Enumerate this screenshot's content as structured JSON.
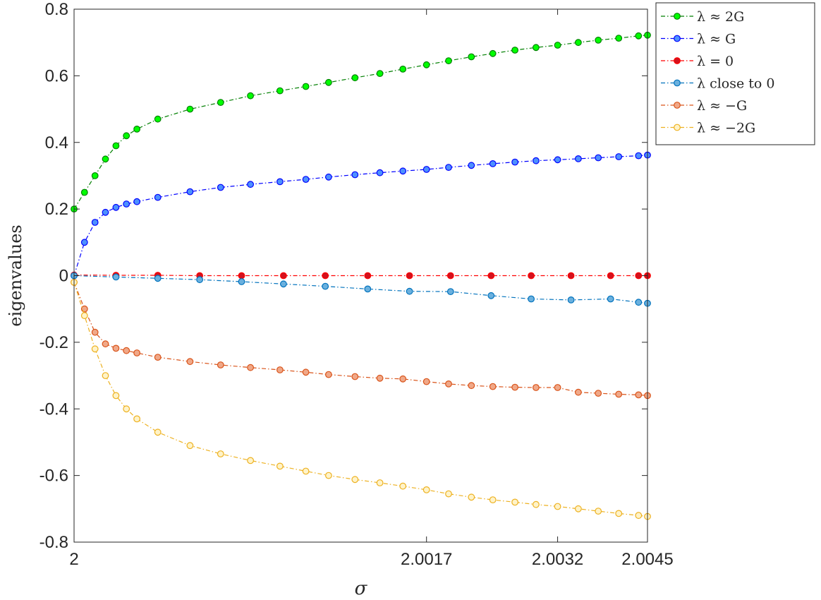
{
  "chart_data": {
    "type": "line",
    "title": "",
    "xlabel": "σ",
    "ylabel": "eigenvalues",
    "xlim": [
      2,
      2.0045
    ],
    "ylim": [
      -0.8,
      0.8
    ],
    "x_scale": "sqrt",
    "x_ticks": [
      2,
      2.0017,
      2.0032,
      2.0045
    ],
    "x_tick_labels": [
      "2",
      "2.0017",
      "2.0032",
      "2.0045"
    ],
    "y_ticks": [
      -0.8,
      -0.6,
      -0.4,
      -0.2,
      0,
      0.2,
      0.4,
      0.6,
      0.8
    ],
    "y_tick_labels": [
      "-0.8",
      "-0.6",
      "-0.4",
      "-0.2",
      "0",
      "0.2",
      "0.4",
      "0.6",
      "0.8"
    ],
    "grid": false,
    "legend_position": "outside-top-right",
    "series": [
      {
        "name": "λ ≈ 2G",
        "color": "#007f00",
        "marker_fill": "#00ff00",
        "line_style": "dash-dot",
        "x": [
          2.0,
          2.0000015,
          2.000006,
          2.0000135,
          2.000024,
          2.0000375,
          2.000054,
          2.000096,
          2.000184,
          2.000294,
          2.000426,
          2.00058,
          2.000735,
          2.000887,
          2.00108,
          2.00128,
          2.00148,
          2.0017,
          2.00192,
          2.00216,
          2.0024,
          2.00266,
          2.00292,
          2.0032,
          2.00348,
          2.00376,
          2.00406,
          2.00436,
          2.0045
        ],
        "y": [
          0.2,
          0.25,
          0.3,
          0.35,
          0.39,
          0.42,
          0.44,
          0.47,
          0.5,
          0.52,
          0.54,
          0.555,
          0.568,
          0.58,
          0.594,
          0.607,
          0.62,
          0.633,
          0.645,
          0.657,
          0.667,
          0.677,
          0.685,
          0.692,
          0.7,
          0.707,
          0.713,
          0.72,
          0.722
        ]
      },
      {
        "name": "λ ≈ G",
        "color": "#0000ff",
        "marker_fill": "#4d90fe",
        "line_style": "dash-dot",
        "x": [
          2.0,
          2.0000015,
          2.000006,
          2.0000135,
          2.000024,
          2.0000375,
          2.000054,
          2.000096,
          2.000184,
          2.000294,
          2.000426,
          2.00058,
          2.000735,
          2.000887,
          2.00108,
          2.00128,
          2.00148,
          2.0017,
          2.00192,
          2.00216,
          2.0024,
          2.00266,
          2.00292,
          2.0032,
          2.00348,
          2.00376,
          2.00406,
          2.00436,
          2.0045
        ],
        "y": [
          0.0,
          0.1,
          0.16,
          0.19,
          0.205,
          0.215,
          0.222,
          0.235,
          0.252,
          0.265,
          0.274,
          0.282,
          0.289,
          0.296,
          0.303,
          0.309,
          0.314,
          0.319,
          0.325,
          0.331,
          0.336,
          0.341,
          0.345,
          0.348,
          0.351,
          0.354,
          0.357,
          0.36,
          0.362
        ]
      },
      {
        "name": "λ = 0",
        "color": "#ff0000",
        "marker_fill": "#d3121e",
        "line_style": "dash-dot",
        "x": [
          2.0,
          2.000024,
          2.000096,
          2.000216,
          2.000384,
          2.0006,
          2.000864,
          2.00118,
          2.00154,
          2.00194,
          2.00238,
          2.00286,
          2.00338,
          2.00394,
          2.00436,
          2.0045
        ],
        "y": [
          0.002,
          0.001,
          0.001,
          0.0,
          0.0,
          0.0,
          0.0,
          0.0,
          0.0,
          0.0,
          0.0,
          0.0,
          0.0,
          0.0,
          0.0,
          0.0
        ]
      },
      {
        "name": "λ close to 0",
        "color": "#0072bd",
        "marker_fill": "#6ab0de",
        "line_style": "dash-dot",
        "x": [
          2.0,
          2.000024,
          2.000096,
          2.000216,
          2.000384,
          2.0006,
          2.000864,
          2.00118,
          2.00154,
          2.00194,
          2.00238,
          2.00286,
          2.00338,
          2.00394,
          2.00436,
          2.0045
        ],
        "y": [
          0.0,
          -0.004,
          -0.008,
          -0.012,
          -0.018,
          -0.025,
          -0.032,
          -0.04,
          -0.047,
          -0.048,
          -0.06,
          -0.07,
          -0.073,
          -0.07,
          -0.08,
          -0.083
        ]
      },
      {
        "name": "λ ≈ −G",
        "color": "#d95319",
        "marker_fill": "#f0a888",
        "line_style": "dash-dot",
        "x": [
          2.0,
          2.0000015,
          2.000006,
          2.0000135,
          2.000024,
          2.0000375,
          2.000054,
          2.000096,
          2.000184,
          2.000294,
          2.000426,
          2.00058,
          2.000735,
          2.000887,
          2.00108,
          2.00128,
          2.00148,
          2.0017,
          2.00192,
          2.00216,
          2.0024,
          2.00266,
          2.00292,
          2.0032,
          2.00348,
          2.00376,
          2.00406,
          2.00436,
          2.0045
        ],
        "y": [
          -0.02,
          -0.1,
          -0.17,
          -0.205,
          -0.218,
          -0.225,
          -0.232,
          -0.245,
          -0.258,
          -0.268,
          -0.276,
          -0.283,
          -0.29,
          -0.297,
          -0.303,
          -0.308,
          -0.31,
          -0.318,
          -0.325,
          -0.33,
          -0.333,
          -0.335,
          -0.336,
          -0.336,
          -0.35,
          -0.353,
          -0.356,
          -0.358,
          -0.36
        ]
      },
      {
        "name": "λ ≈ −2G",
        "color": "#edb120",
        "marker_fill": "#fff3c8",
        "line_style": "dash-dot",
        "x": [
          2.0,
          2.0000015,
          2.000006,
          2.0000135,
          2.000024,
          2.0000375,
          2.000054,
          2.000096,
          2.000184,
          2.000294,
          2.000426,
          2.00058,
          2.000735,
          2.000887,
          2.00108,
          2.00128,
          2.00148,
          2.0017,
          2.00192,
          2.00216,
          2.0024,
          2.00266,
          2.00292,
          2.0032,
          2.00348,
          2.00376,
          2.00406,
          2.00436,
          2.0045
        ],
        "y": [
          -0.02,
          -0.12,
          -0.22,
          -0.3,
          -0.36,
          -0.4,
          -0.43,
          -0.47,
          -0.51,
          -0.535,
          -0.555,
          -0.572,
          -0.587,
          -0.6,
          -0.612,
          -0.622,
          -0.632,
          -0.643,
          -0.655,
          -0.665,
          -0.673,
          -0.68,
          -0.687,
          -0.693,
          -0.7,
          -0.707,
          -0.714,
          -0.72,
          -0.723
        ]
      }
    ]
  }
}
